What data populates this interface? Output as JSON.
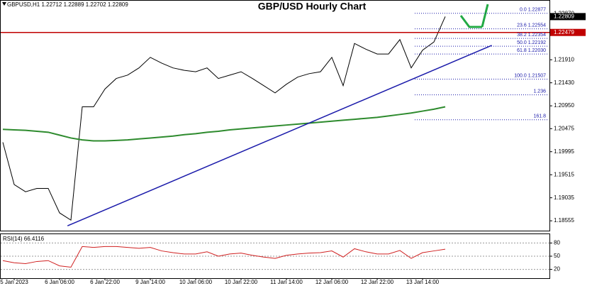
{
  "chart_data": [
    {
      "type": "line",
      "title": "GBP/USD Hourly Chart",
      "header": "GBPUSD,H1  1.22712 1.22889 1.22702 1.22809",
      "categories": [
        null,
        "5 Jan 2023",
        null,
        null,
        null,
        "6 Jan 06:00",
        null,
        null,
        null,
        "6 Jan 22:00",
        null,
        null,
        null,
        "9 Jan 14:00",
        null,
        null,
        null,
        "10 Jan 06:00",
        null,
        null,
        null,
        "10 Jan 22:00",
        null,
        null,
        null,
        "11 Jan 14:00",
        null,
        null,
        null,
        "12 Jan 06:00",
        null,
        null,
        null,
        "12 Jan 22:00",
        null,
        null,
        null,
        "13 Jan 14:00",
        null,
        null
      ],
      "series": [
        {
          "color": "#000000",
          "values": [
            1.2019,
            1.1931,
            1.1916,
            1.1923,
            1.1923,
            1.1872,
            1.1857,
            1.2093,
            1.2093,
            1.213,
            1.2152,
            1.2159,
            1.2174,
            1.2196,
            1.2184,
            1.2174,
            1.2169,
            1.2166,
            1.2174,
            1.2152,
            1.2159,
            1.2166,
            1.2152,
            1.2137,
            1.2122,
            1.214,
            1.2155,
            1.2162,
            1.2166,
            1.2196,
            1.2137,
            1.2225,
            1.2213,
            1.2203,
            1.2203,
            1.2233,
            1.2174,
            1.2211,
            1.2228,
            1.2281
          ]
        },
        {
          "color": "#2e8b2e",
          "values": [
            1.2046,
            1.2045,
            1.2044,
            1.2042,
            1.204,
            1.2034,
            1.2028,
            1.2024,
            1.2022,
            1.2022,
            1.2023,
            1.2024,
            1.2026,
            1.2028,
            1.203,
            1.2032,
            1.2035,
            1.2037,
            1.204,
            1.2042,
            1.2045,
            1.2047,
            1.2049,
            1.2051,
            1.2053,
            1.2055,
            1.2057,
            1.2059,
            1.2061,
            1.2063,
            1.2065,
            1.2067,
            1.2069,
            1.2071,
            1.2074,
            1.2077,
            1.208,
            1.2084,
            1.2088,
            1.2093
          ]
        }
      ],
      "ylim": [
        1.1835,
        1.2314
      ],
      "yticks": [
        {
          "value": 1.2287,
          "label": "1.22870"
        },
        {
          "value": 1.2191,
          "label": "1.21910"
        },
        {
          "value": 1.2143,
          "label": "1.21430"
        },
        {
          "value": 1.2095,
          "label": "1.20950"
        },
        {
          "value": 1.20475,
          "label": "1.20475"
        },
        {
          "value": 1.19995,
          "label": "1.19995"
        },
        {
          "value": 1.19515,
          "label": "1.19515"
        },
        {
          "value": 1.19035,
          "label": "1.19035"
        },
        {
          "value": 1.18555,
          "label": "1.18555"
        }
      ],
      "last": {
        "value": 1.22809,
        "label": "1.22809"
      },
      "resistance": {
        "value": 1.22479,
        "label": "1.22479",
        "color": "#c00000"
      },
      "trendline": {
        "x": [
          5.7,
          43.1
        ],
        "y": [
          1.1845,
          1.2221
        ],
        "color": "#1a1aaa"
      },
      "fib_levels": [
        {
          "label": "0.0 1.22877",
          "value": 1.22877
        },
        {
          "label": "23.6 1.22554",
          "value": 1.22554
        },
        {
          "label": "38.2 1.22354",
          "value": 1.22354
        },
        {
          "label": "50.0 1.22192",
          "value": 1.22192
        },
        {
          "label": "61.8 1.22030",
          "value": 1.2203
        },
        {
          "label": "100.0 1.21507",
          "value": 1.21507
        },
        {
          "label": "1.236",
          "value": 1.2118
        },
        {
          "label": "161.8",
          "value": 1.2066
        }
      ]
    },
    {
      "type": "line",
      "label": "RSI(14) 66.4116",
      "ylim": [
        0,
        100
      ],
      "yticks": [
        80,
        50,
        20
      ],
      "series": [
        {
          "color": "#d02020",
          "values": [
            40,
            35,
            33,
            38,
            40,
            28,
            25,
            72,
            70,
            72,
            72,
            70,
            68,
            70,
            62,
            58,
            55,
            55,
            60,
            50,
            55,
            57,
            52,
            48,
            45,
            52,
            55,
            57,
            58,
            62,
            48,
            67,
            60,
            55,
            55,
            63,
            45,
            58,
            62,
            66
          ]
        }
      ]
    }
  ]
}
